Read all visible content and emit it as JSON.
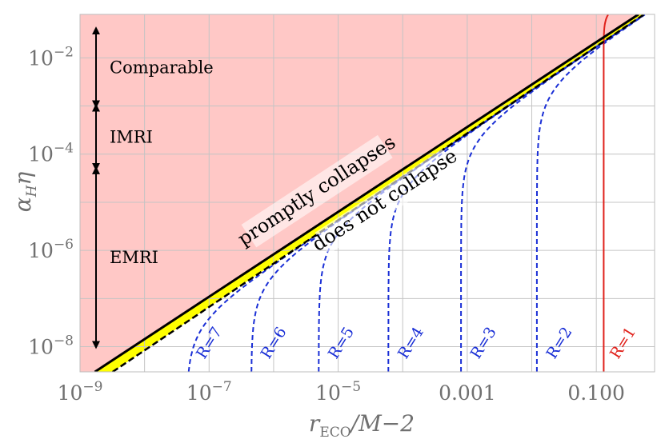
{
  "chart_data": {
    "type": "line",
    "xscale": "log",
    "yscale": "log",
    "xlim": [
      1e-09,
      0.8
    ],
    "ylim": [
      3e-09,
      0.08
    ],
    "xticks": [
      {
        "value": 1e-09,
        "base": "10",
        "exp": "−9"
      },
      {
        "value": 1e-07,
        "base": "10",
        "exp": "−7"
      },
      {
        "value": 1e-05,
        "base": "10",
        "exp": "−5"
      },
      {
        "value": 0.001,
        "label": "0.001"
      },
      {
        "value": 0.1,
        "label": "0.100"
      }
    ],
    "yticks": [
      {
        "value": 1e-08,
        "base": "10",
        "exp": "−8"
      },
      {
        "value": 1e-06,
        "base": "10",
        "exp": "−6"
      },
      {
        "value": 0.0001,
        "base": "10",
        "exp": "−4"
      },
      {
        "value": 0.01,
        "base": "10",
        "exp": "−2"
      }
    ],
    "xlabel": {
      "main": "r",
      "sub": "ECO",
      "rest": "/M−2"
    },
    "ylabel": {
      "main": "α",
      "sub": "H",
      "rest": "η"
    },
    "grid": true,
    "colors": {
      "collapse_region": "#ffc8c6",
      "band": "#ffff00",
      "boundary": "#000000",
      "curves": "#1a2fd6",
      "r1_curve": "#e0201a",
      "grid": "#c4c4c4"
    },
    "boundaries": [
      {
        "name": "upper",
        "points": [
          [
            1.7e-09,
            3e-09
          ],
          [
            0.45,
            0.08
          ]
        ]
      },
      {
        "name": "lower",
        "points": [
          [
            3.2e-09,
            3e-09
          ],
          [
            0.55,
            0.08
          ]
        ]
      }
    ],
    "curves": [
      {
        "label": "R=7",
        "x_asymptote": 4.5e-08
      },
      {
        "label": "R=6",
        "x_asymptote": 4.5e-07
      },
      {
        "label": "R=5",
        "x_asymptote": 5e-06
      },
      {
        "label": "R=4",
        "x_asymptote": 6e-05
      },
      {
        "label": "R=3",
        "x_asymptote": 0.0008
      },
      {
        "label": "R=2",
        "x_asymptote": 0.012
      },
      {
        "label": "R=1",
        "x_asymptote": 0.13
      }
    ],
    "regions": [
      {
        "label": "Comparable",
        "y_range": [
          0.001,
          0.04
        ]
      },
      {
        "label": "IMRI",
        "y_range": [
          5e-05,
          0.001
        ]
      },
      {
        "label": "EMRI",
        "y_range": [
          1e-08,
          5e-05
        ]
      }
    ],
    "annotations": [
      {
        "text": "promptly collapses"
      },
      {
        "text": "does not collapse"
      }
    ]
  }
}
